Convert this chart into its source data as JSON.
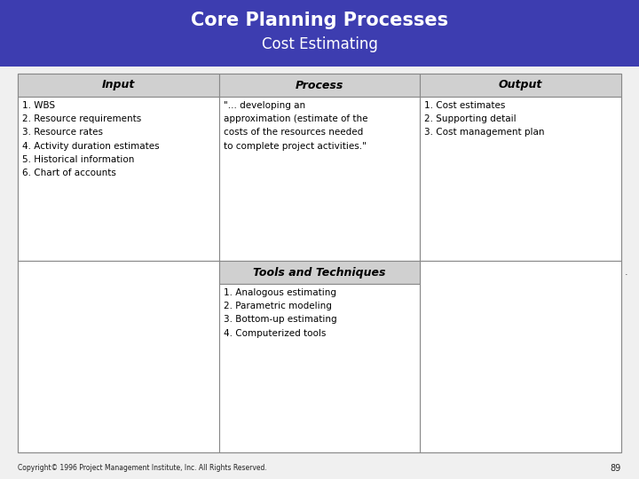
{
  "title_line1": "Core Planning Processes",
  "title_line2": "Cost Estimating",
  "header_bg": "#3d3db0",
  "header_text_color": "#ffffff",
  "page_bg": "#e8e8e8",
  "cell_bg": "#ffffff",
  "col_header_bg": "#d0d0d0",
  "border_color": "#888888",
  "col_headers": [
    "Input",
    "Process",
    "Output"
  ],
  "input_items": [
    "1. WBS",
    "2. Resource requirements",
    "3. Resource rates",
    "4. Activity duration estimates",
    "5. Historical information",
    "6. Chart of accounts"
  ],
  "process_text": "\"... developing an\napproximation (estimate of the\ncosts of the resources needed\nto complete project activities.\"",
  "output_items": [
    "1. Cost estimates",
    "2. Supporting detail",
    "3. Cost management plan"
  ],
  "tools_header": "Tools and Techniques",
  "tools_items": [
    "1. Analogous estimating",
    "2. Parametric modeling",
    "3. Bottom-up estimating",
    "4. Computerized tools"
  ],
  "footer_text": "Copyright© 1996 Project Management Institute, Inc. All Rights Reserved.",
  "footer_page": "89",
  "body_font_size": 7.5,
  "col_header_font_size": 9,
  "title1_font_size": 15,
  "title2_font_size": 12
}
